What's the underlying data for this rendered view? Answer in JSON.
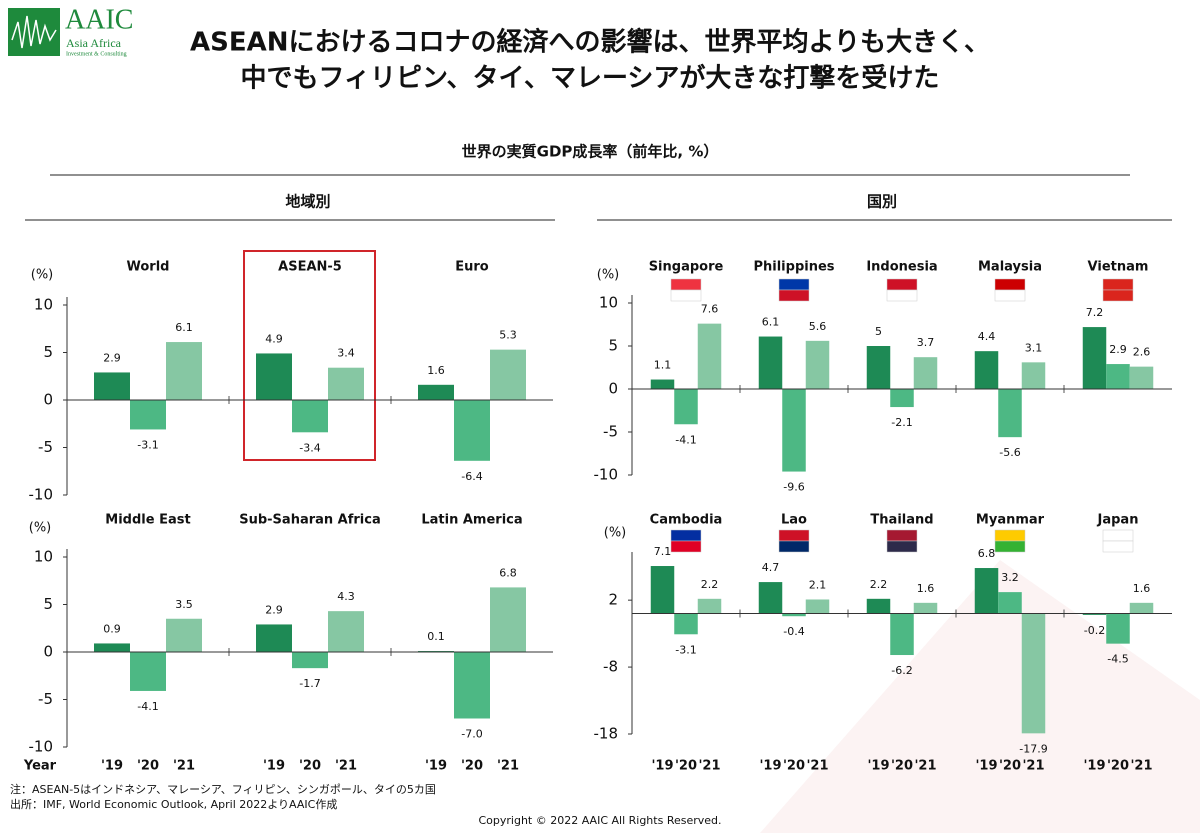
{
  "header": {
    "logo": "AAIC",
    "logo_sub": "Asia Africa",
    "logo_sub2": "Investment & Consulting",
    "title_line1": "ASEANにおけるコロナの経済への影響は、世界平均よりも大きく、",
    "title_line2": "中でもフィリピン、タイ、マレーシアが大きな打撃を受けた"
  },
  "subtitle": "世界の実質GDP成長率（前年比, %）",
  "sections": [
    "地域別",
    "国別"
  ],
  "notes": [
    "注：ASEAN-5はインドネシア、マレーシア、フィリピン、シンガポール、タイの5カ国",
    "出所：IMF, World Economic Outlook, April 2022よりAAIC作成"
  ],
  "copyright": "Copyright © 2022 AAIC All Rights Reserved.",
  "chart_data": [
    {
      "type": "bar",
      "unit_label": "(%)",
      "colors": [
        "#1e8a55",
        "#4db884",
        "#86c7a3"
      ],
      "ylim": [
        -10,
        10
      ],
      "yticks": [
        -10,
        -5,
        0,
        5,
        10
      ],
      "panels": [
        {
          "name": "World",
          "values": [
            2.9,
            -3.1,
            6.1
          ]
        },
        {
          "name": "ASEAN-5",
          "values": [
            4.9,
            -3.4,
            3.4
          ]
        },
        {
          "name": "Euro",
          "values": [
            1.6,
            -6.4,
            5.3
          ]
        }
      ]
    },
    {
      "type": "bar",
      "unit_label": "(%)",
      "colors": [
        "#1e8a55",
        "#4db884",
        "#86c7a3"
      ],
      "ylim": [
        -10,
        10
      ],
      "yticks": [
        -10,
        -5,
        0,
        5,
        10
      ],
      "x_label": "Year",
      "categories": [
        "'19",
        "'20",
        "'21"
      ],
      "panels": [
        {
          "name": "Middle East",
          "values": [
            0.9,
            -4.1,
            3.5
          ]
        },
        {
          "name": "Sub-Saharan Africa",
          "values": [
            2.9,
            -1.7,
            4.3
          ]
        },
        {
          "name": "Latin America",
          "values": [
            0.1,
            -7.0,
            6.8
          ],
          "value_labels": [
            "0.1",
            "-7.0",
            "6.8"
          ]
        }
      ]
    },
    {
      "type": "bar",
      "unit_label": "(%)",
      "colors": [
        "#1e8a55",
        "#4db884",
        "#86c7a3"
      ],
      "ylim": [
        -10,
        10
      ],
      "yticks": [
        -10,
        -5,
        0,
        5,
        10
      ],
      "panels": [
        {
          "name": "Singapore",
          "values": [
            1.1,
            -4.1,
            7.6
          ]
        },
        {
          "name": "Philippines",
          "values": [
            6.1,
            -9.6,
            5.6
          ]
        },
        {
          "name": "Indonesia",
          "values": [
            5,
            -2.1,
            3.7
          ]
        },
        {
          "name": "Malaysia",
          "values": [
            4.4,
            -5.6,
            3.1
          ]
        },
        {
          "name": "Vietnam",
          "values": [
            7.2,
            2.9,
            2.6
          ]
        }
      ]
    },
    {
      "type": "bar",
      "unit_label": "(%)",
      "colors": [
        "#1e8a55",
        "#4db884",
        "#86c7a3"
      ],
      "ylim": [
        -18,
        8
      ],
      "yticks": [
        -18,
        -8,
        2
      ],
      "categories": [
        "'19",
        "'20",
        "'21"
      ],
      "panels": [
        {
          "name": "Cambodia",
          "values": [
            7.1,
            -3.1,
            2.2
          ]
        },
        {
          "name": "Lao",
          "values": [
            4.7,
            -0.4,
            2.1
          ]
        },
        {
          "name": "Thailand",
          "values": [
            2.2,
            -6.2,
            1.6
          ]
        },
        {
          "name": "Myanmar",
          "values": [
            6.8,
            3.2,
            -17.9
          ]
        },
        {
          "name": "Japan",
          "values": [
            -0.2,
            -4.5,
            1.6
          ]
        }
      ]
    }
  ]
}
